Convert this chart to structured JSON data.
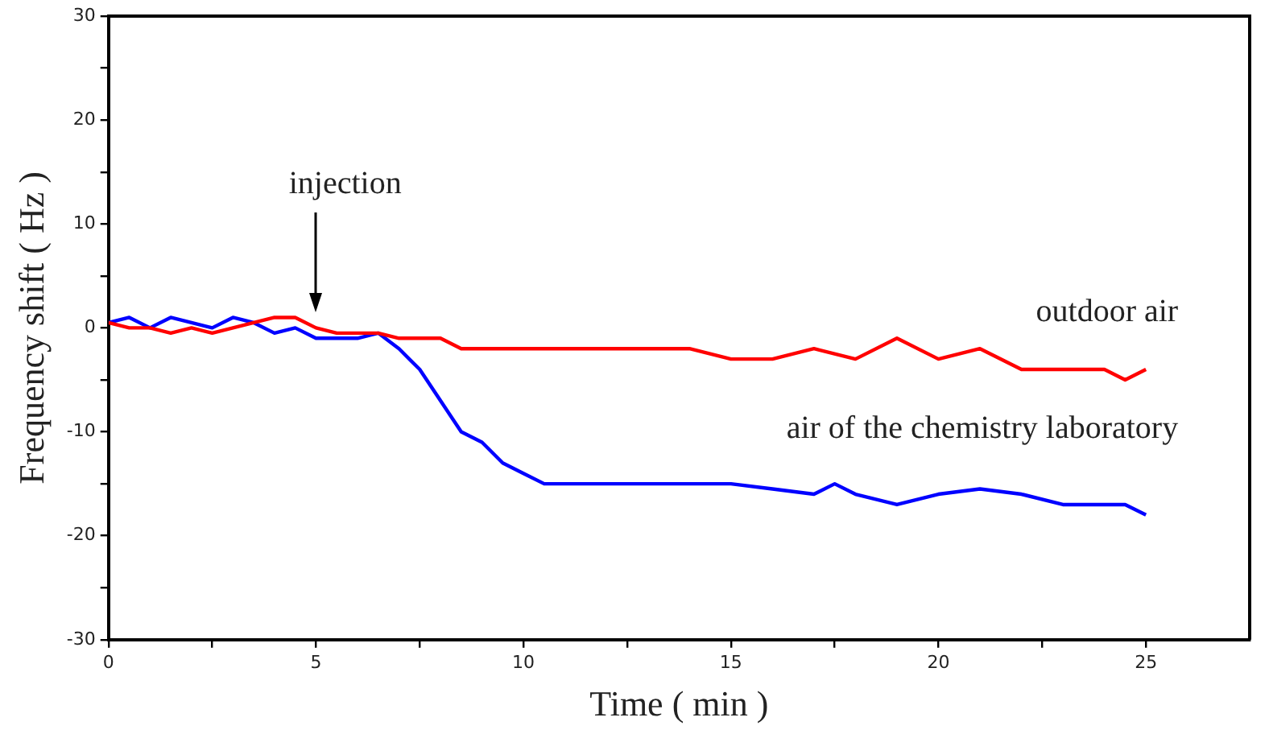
{
  "chart_data": {
    "type": "line",
    "xlabel": "Time ( min )",
    "ylabel": "Frequency shift ( Hz )",
    "xlim": [
      0,
      27.5
    ],
    "xticks": [
      0,
      {
        "value": 2.5,
        "label": null
      },
      5,
      {
        "value": 7.5,
        "label": null
      },
      10,
      {
        "value": 12.5,
        "label": null
      },
      15,
      {
        "value": 17.5,
        "label": null
      },
      20,
      {
        "value": 22.5,
        "label": null
      },
      25
    ],
    "ylim": [
      -30,
      30
    ],
    "yticks": [
      -30,
      {
        "value": -25,
        "label": null
      },
      -20,
      {
        "value": -15,
        "label": null
      },
      -10,
      {
        "value": -5,
        "label": null
      },
      0,
      {
        "value": 5,
        "label": null
      },
      10,
      {
        "value": 15,
        "label": null
      },
      20,
      {
        "value": 25,
        "label": null
      },
      30
    ],
    "grid": false,
    "legend": false,
    "marker": "none",
    "line_style": "solid",
    "annotations": [
      "injection"
    ],
    "series": [
      {
        "name": "outdoor air",
        "color": "#ff0000",
        "x": [
          0,
          0.5,
          1,
          1.5,
          2,
          2.5,
          3,
          3.5,
          4,
          4.5,
          5,
          5.5,
          6,
          6.5,
          7,
          8,
          8.5,
          9,
          10,
          11,
          12,
          13,
          14,
          15,
          16,
          17,
          18,
          19,
          20,
          21,
          22,
          23,
          24,
          24.5,
          25
        ],
        "values": [
          0.5,
          0,
          0,
          -0.5,
          0,
          -0.5,
          0,
          0.5,
          1,
          1,
          0,
          -0.5,
          -0.5,
          -0.5,
          -1,
          -1,
          -2,
          -2,
          -2,
          -2,
          -2,
          -2,
          -2,
          -3,
          -3,
          -2,
          -3,
          -1,
          -3,
          -2,
          -4,
          -4,
          -4,
          -5,
          -4
        ]
      },
      {
        "name": "air of the chemistry laboratory",
        "color": "#0000ff",
        "x": [
          0,
          0.5,
          1,
          1.5,
          2,
          2.5,
          3,
          3.5,
          4,
          4.5,
          5,
          5.5,
          6,
          6.5,
          7,
          7.5,
          8,
          8.5,
          9,
          9.5,
          10,
          10.5,
          11,
          12,
          13,
          14,
          15,
          16,
          17,
          17.5,
          18,
          19,
          20,
          21,
          22,
          23,
          24,
          24.5,
          25
        ],
        "values": [
          0.5,
          1,
          0,
          1,
          0.5,
          0,
          1,
          0.5,
          -0.5,
          0,
          -1,
          -1,
          -1,
          -0.5,
          -2,
          -4,
          -7,
          -10,
          -11,
          -13,
          -14,
          -15,
          -15,
          -15,
          -15,
          -15,
          -15,
          -15.5,
          -16,
          -15,
          -16,
          -17,
          -16,
          -15.5,
          -16,
          -17,
          -17,
          -17,
          -18
        ]
      }
    ]
  }
}
